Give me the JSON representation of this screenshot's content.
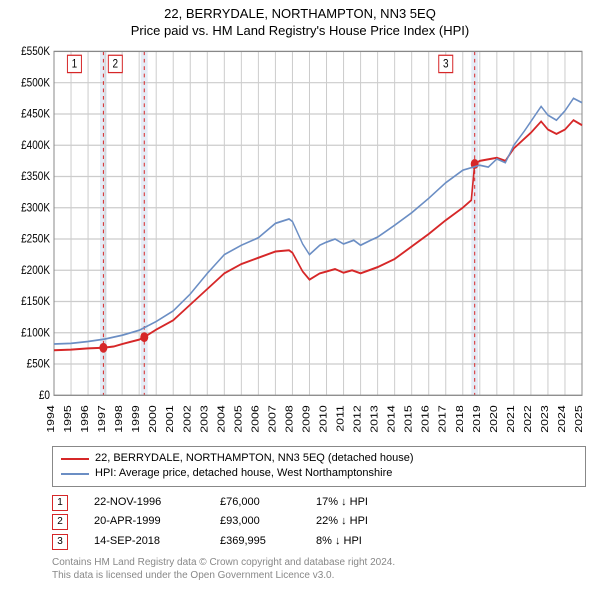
{
  "title_main": "22, BERRYDALE, NORTHAMPTON, NN3 5EQ",
  "title_sub": "Price paid vs. HM Land Registry's House Price Index (HPI)",
  "chart": {
    "type": "line",
    "background_color": "#ffffff",
    "grid_color": "#cccccc",
    "ylim": [
      0,
      550
    ],
    "ytick_step": 50,
    "yticks": [
      0,
      50,
      100,
      150,
      200,
      250,
      300,
      350,
      400,
      450,
      500,
      550
    ],
    "ytick_labels": [
      "£0",
      "£50K",
      "£100K",
      "£150K",
      "£200K",
      "£250K",
      "£300K",
      "£350K",
      "£400K",
      "£450K",
      "£500K",
      "£550K"
    ],
    "xlim": [
      1994,
      2025
    ],
    "xticks": [
      1994,
      1995,
      1996,
      1997,
      1998,
      1999,
      2000,
      2001,
      2002,
      2003,
      2004,
      2005,
      2006,
      2007,
      2008,
      2009,
      2010,
      2011,
      2012,
      2013,
      2014,
      2015,
      2016,
      2017,
      2018,
      2019,
      2020,
      2021,
      2022,
      2023,
      2024,
      2025
    ],
    "highlight_bands": [
      {
        "x": 1996.9,
        "width": 0.4,
        "color": "#e5ecf6"
      },
      {
        "x": 1999.3,
        "width": 0.4,
        "color": "#e5ecf6"
      },
      {
        "x": 2018.7,
        "width": 0.4,
        "color": "#e5ecf6"
      }
    ],
    "vlines": [
      {
        "x": 1996.9,
        "color": "#d62728",
        "dash": "3,3"
      },
      {
        "x": 1999.3,
        "color": "#d62728",
        "dash": "3,3"
      },
      {
        "x": 2018.7,
        "color": "#d62728",
        "dash": "3,3"
      }
    ],
    "markers_on_chart": [
      {
        "label": "1",
        "x": 1995.2,
        "y": 530,
        "border": "#d62728"
      },
      {
        "label": "2",
        "x": 1997.6,
        "y": 530,
        "border": "#d62728"
      },
      {
        "label": "3",
        "x": 2017.0,
        "y": 530,
        "border": "#d62728"
      }
    ],
    "series": [
      {
        "id": "property",
        "label": "22, BERRYDALE, NORTHAMPTON, NN3 5EQ (detached house)",
        "color": "#d62728",
        "line_width": 1.6,
        "points": [
          [
            1994,
            72
          ],
          [
            1995,
            73
          ],
          [
            1996,
            75
          ],
          [
            1996.9,
            76
          ],
          [
            1997.5,
            78
          ],
          [
            1998,
            82
          ],
          [
            1999,
            89
          ],
          [
            1999.3,
            93
          ],
          [
            2000,
            105
          ],
          [
            2001,
            120
          ],
          [
            2002,
            145
          ],
          [
            2003,
            170
          ],
          [
            2004,
            195
          ],
          [
            2005,
            210
          ],
          [
            2006,
            220
          ],
          [
            2007,
            230
          ],
          [
            2007.8,
            232
          ],
          [
            2008,
            228
          ],
          [
            2008.6,
            198
          ],
          [
            2009,
            185
          ],
          [
            2009.6,
            195
          ],
          [
            2010,
            198
          ],
          [
            2010.5,
            202
          ],
          [
            2011,
            196
          ],
          [
            2011.5,
            200
          ],
          [
            2012,
            195
          ],
          [
            2012.5,
            200
          ],
          [
            2013,
            205
          ],
          [
            2014,
            218
          ],
          [
            2015,
            238
          ],
          [
            2016,
            258
          ],
          [
            2017,
            280
          ],
          [
            2018,
            300
          ],
          [
            2018.5,
            312
          ],
          [
            2018.7,
            370
          ],
          [
            2019,
            375
          ],
          [
            2020,
            380
          ],
          [
            2020.5,
            375
          ],
          [
            2021,
            395
          ],
          [
            2021.6,
            410
          ],
          [
            2022,
            420
          ],
          [
            2022.6,
            438
          ],
          [
            2023,
            425
          ],
          [
            2023.5,
            418
          ],
          [
            2024,
            425
          ],
          [
            2024.5,
            440
          ],
          [
            2025,
            432
          ]
        ],
        "sale_markers": [
          {
            "x": 1996.9,
            "y": 76
          },
          {
            "x": 1999.3,
            "y": 93
          },
          {
            "x": 2018.7,
            "y": 370
          }
        ],
        "marker_color": "#d62728",
        "marker_radius": 4
      },
      {
        "id": "hpi",
        "label": "HPI: Average price, detached house, West Northamptonshire",
        "color": "#6b8ec4",
        "line_width": 1.4,
        "points": [
          [
            1994,
            82
          ],
          [
            1995,
            83
          ],
          [
            1996,
            86
          ],
          [
            1997,
            90
          ],
          [
            1998,
            96
          ],
          [
            1999,
            104
          ],
          [
            2000,
            118
          ],
          [
            2001,
            135
          ],
          [
            2002,
            162
          ],
          [
            2003,
            195
          ],
          [
            2004,
            225
          ],
          [
            2005,
            240
          ],
          [
            2006,
            252
          ],
          [
            2007,
            275
          ],
          [
            2007.8,
            282
          ],
          [
            2008,
            278
          ],
          [
            2008.6,
            242
          ],
          [
            2009,
            225
          ],
          [
            2009.6,
            240
          ],
          [
            2010,
            245
          ],
          [
            2010.5,
            250
          ],
          [
            2011,
            242
          ],
          [
            2011.6,
            248
          ],
          [
            2012,
            240
          ],
          [
            2012.6,
            248
          ],
          [
            2013,
            253
          ],
          [
            2014,
            272
          ],
          [
            2015,
            292
          ],
          [
            2016,
            315
          ],
          [
            2017,
            340
          ],
          [
            2018,
            360
          ],
          [
            2019,
            368
          ],
          [
            2019.5,
            365
          ],
          [
            2020,
            378
          ],
          [
            2020.5,
            372
          ],
          [
            2021,
            400
          ],
          [
            2021.6,
            422
          ],
          [
            2022,
            438
          ],
          [
            2022.6,
            462
          ],
          [
            2023,
            448
          ],
          [
            2023.5,
            440
          ],
          [
            2024,
            455
          ],
          [
            2024.5,
            475
          ],
          [
            2025,
            468
          ]
        ]
      }
    ]
  },
  "legend": [
    {
      "color": "#d62728",
      "label": "22, BERRYDALE, NORTHAMPTON, NN3 5EQ (detached house)"
    },
    {
      "color": "#6b8ec4",
      "label": "HPI: Average price, detached house, West Northamptonshire"
    }
  ],
  "transactions": [
    {
      "n": "1",
      "border": "#d62728",
      "date": "22-NOV-1996",
      "price": "£76,000",
      "diff": "17% ↓ HPI"
    },
    {
      "n": "2",
      "border": "#d62728",
      "date": "20-APR-1999",
      "price": "£93,000",
      "diff": "22% ↓ HPI"
    },
    {
      "n": "3",
      "border": "#d62728",
      "date": "14-SEP-2018",
      "price": "£369,995",
      "diff": "8% ↓ HPI"
    }
  ],
  "attribution_line1": "Contains HM Land Registry data © Crown copyright and database right 2024.",
  "attribution_line2": "This data is licensed under the Open Government Licence v3.0."
}
